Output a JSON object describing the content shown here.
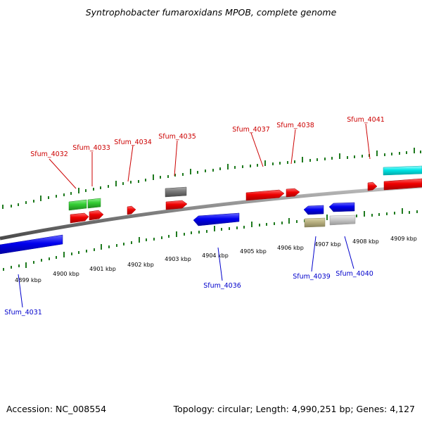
{
  "title": "Syntrophobacter fumaroxidans MPOB, complete genome",
  "footer": {
    "accession": "Accession: NC_008554",
    "summary": "Topology: circular; Length: 4,990,251 bp; Genes: 4,127"
  },
  "kbp_labels": [
    "4899 kbp",
    "4900 kbp",
    "4901 kbp",
    "4902 kbp",
    "4903 kbp",
    "4904 kbp",
    "4905 kbp",
    "4906 kbp",
    "4907 kbp",
    "4908 kbp",
    "4909 kbp"
  ],
  "top_gene_labels": [
    "Sfum_4032",
    "Sfum_4033",
    "Sfum_4034",
    "Sfum_4035",
    "Sfum_4037",
    "Sfum_4038",
    "Sfum_4041"
  ],
  "bottom_gene_labels": [
    "Sfum_4031",
    "Sfum_4036",
    "Sfum_4039",
    "Sfum_4040"
  ],
  "colors": {
    "forward_label": "#cc0000",
    "reverse_label": "#0000cc",
    "forward_cds": "#ee0000",
    "reverse_cds": "#0000ee",
    "rna": "#33cc33",
    "cyan_feature": "#00e5e5",
    "grey_feature": "#777777",
    "olive_feature": "#b8b080",
    "light_grey_feature": "#c8c8c8",
    "tick": "#1f7a1f",
    "backbone": "#808080"
  }
}
